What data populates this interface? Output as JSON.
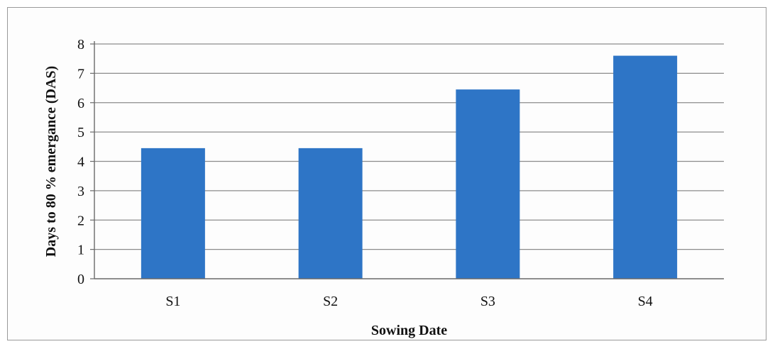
{
  "chart_data": {
    "type": "bar",
    "categories": [
      "S1",
      "S2",
      "S3",
      "S4"
    ],
    "values": [
      4.45,
      4.45,
      6.45,
      7.6
    ],
    "title": "",
    "xlabel": "Sowing Date",
    "ylabel": "Days to 80 % emergance (DAS)",
    "ylim": [
      0,
      8
    ],
    "yticks": [
      "0",
      "1",
      "2",
      "3",
      "4",
      "5",
      "6",
      "7",
      "8"
    ],
    "grid": true,
    "legend": "none",
    "bar_color": "#2e75c6"
  }
}
